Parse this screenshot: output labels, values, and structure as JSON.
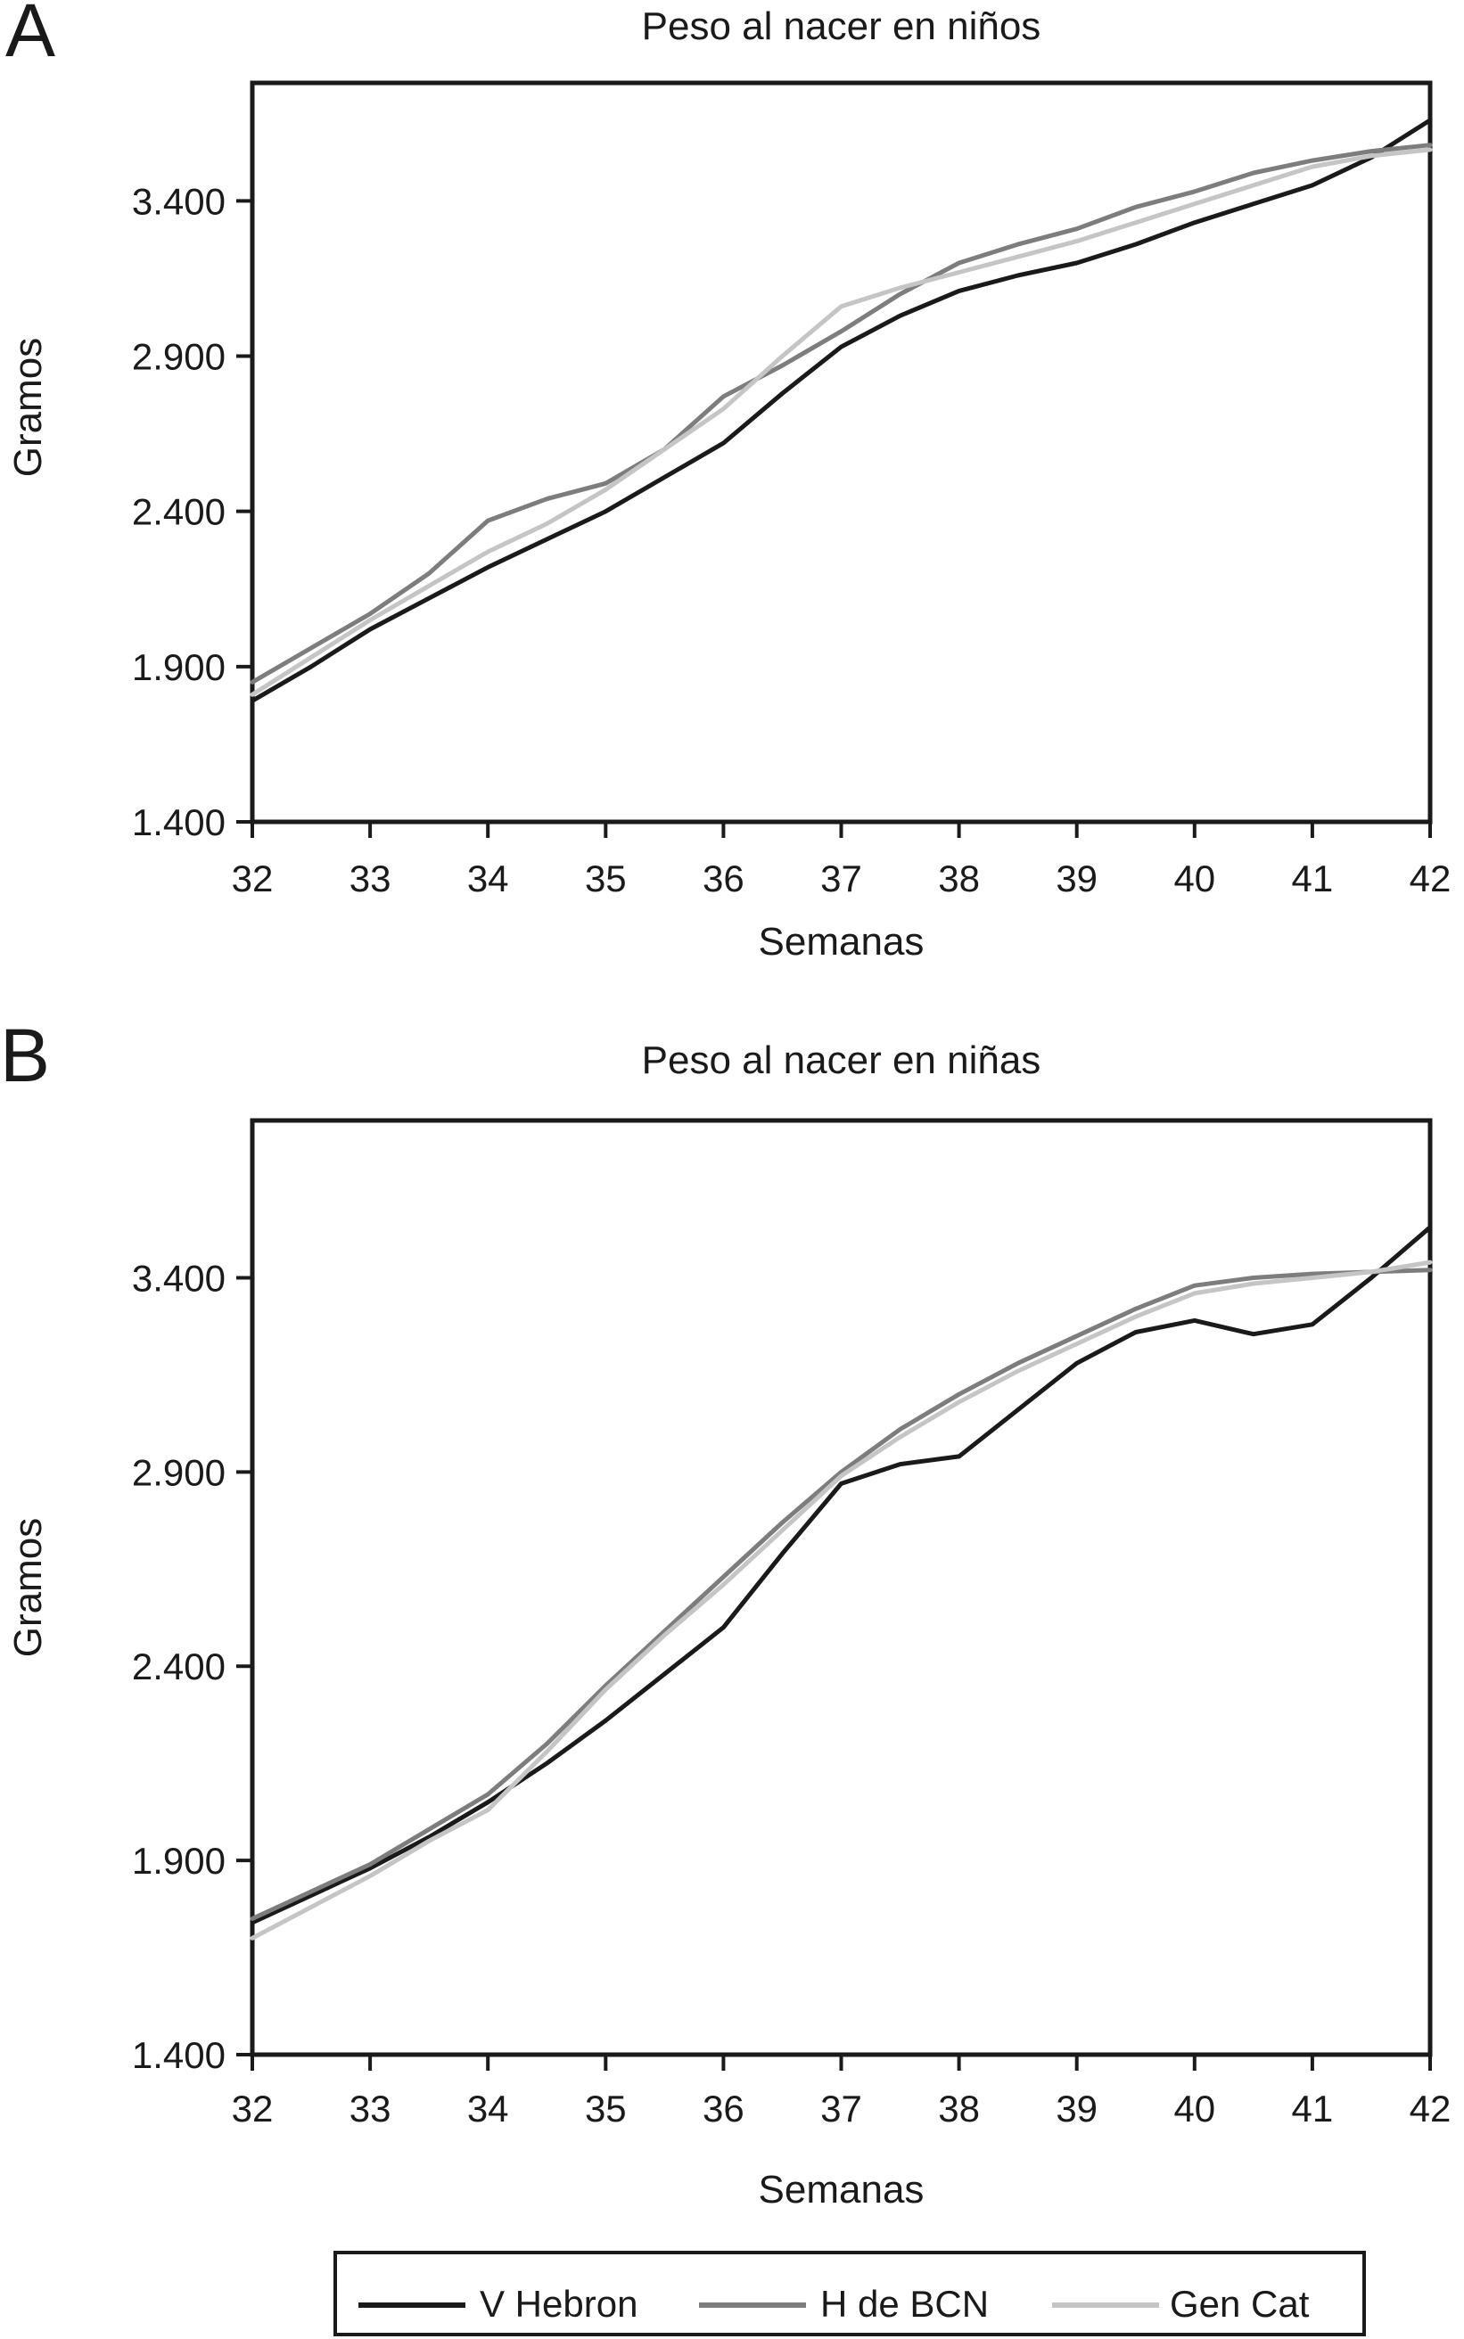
{
  "figure": {
    "background": "#ffffff",
    "text_color": "#1a1a1a"
  },
  "chart_data": [
    {
      "type": "line",
      "panel_letter": "A",
      "title": "Peso al nacer en niños",
      "xlabel": "Semanas",
      "ylabel": "Gramos",
      "xlim": [
        32,
        42
      ],
      "ylim": [
        1400,
        3780
      ],
      "grid": false,
      "legend_position": "bottom-shared",
      "x_ticks": [
        32,
        33,
        34,
        35,
        36,
        37,
        38,
        39,
        40,
        41,
        42
      ],
      "x_tick_labels": [
        "32",
        "33",
        "34",
        "35",
        "36",
        "37",
        "38",
        "39",
        "40",
        "41",
        "42"
      ],
      "y_ticks": [
        1400,
        1900,
        2400,
        2900,
        3400
      ],
      "y_tick_labels": [
        "1.400",
        "1.900",
        "2.400",
        "2.900",
        "3.400"
      ],
      "x_start": 32,
      "x_step": 0.5,
      "series": [
        {
          "name": "V Hebron",
          "color": "#1a1a1a",
          "values": [
            1790,
            1900,
            2020,
            2120,
            2220,
            2310,
            2400,
            2510,
            2620,
            2780,
            2930,
            3030,
            3110,
            3160,
            3200,
            3260,
            3330,
            3390,
            3450,
            3540,
            3660
          ]
        },
        {
          "name": "H de BCN",
          "color": "#7d7d7d",
          "values": [
            1850,
            1960,
            2070,
            2200,
            2370,
            2440,
            2490,
            2600,
            2770,
            2870,
            2980,
            3100,
            3200,
            3260,
            3310,
            3380,
            3430,
            3490,
            3530,
            3560,
            3580
          ]
        },
        {
          "name": "Gen Cat",
          "color": "#c5c5c5",
          "values": [
            1810,
            1930,
            2050,
            2160,
            2270,
            2360,
            2470,
            2600,
            2730,
            2900,
            3060,
            3120,
            3170,
            3220,
            3270,
            3330,
            3390,
            3450,
            3510,
            3545,
            3565
          ]
        }
      ]
    },
    {
      "type": "line",
      "panel_letter": "B",
      "title": "Peso al nacer en niñas",
      "xlabel": "Semanas",
      "ylabel": "Gramos",
      "xlim": [
        32,
        42
      ],
      "ylim": [
        1400,
        3805
      ],
      "grid": false,
      "legend_position": "bottom-shared",
      "x_ticks": [
        32,
        33,
        34,
        35,
        36,
        37,
        38,
        39,
        40,
        41,
        42
      ],
      "x_tick_labels": [
        "32",
        "33",
        "34",
        "35",
        "36",
        "37",
        "38",
        "39",
        "40",
        "41",
        "42"
      ],
      "y_ticks": [
        1400,
        1900,
        2400,
        2900,
        3400
      ],
      "y_tick_labels": [
        "1.400",
        "1.900",
        "2.400",
        "2.900",
        "3.400"
      ],
      "x_start": 32,
      "x_step": 0.5,
      "series": [
        {
          "name": "V Hebron",
          "color": "#1a1a1a",
          "values": [
            1740,
            1810,
            1880,
            1960,
            2050,
            2150,
            2260,
            2380,
            2500,
            2690,
            2870,
            2920,
            2940,
            3060,
            3180,
            3260,
            3290,
            3255,
            3280,
            3400,
            3530
          ]
        },
        {
          "name": "H de BCN",
          "color": "#7d7d7d",
          "values": [
            1750,
            1820,
            1890,
            1980,
            2070,
            2200,
            2350,
            2490,
            2630,
            2770,
            2900,
            3010,
            3100,
            3180,
            3250,
            3320,
            3380,
            3400,
            3410,
            3415,
            3420
          ]
        },
        {
          "name": "Gen Cat",
          "color": "#c5c5c5",
          "values": [
            1700,
            1780,
            1860,
            1950,
            2030,
            2180,
            2340,
            2480,
            2610,
            2750,
            2890,
            2990,
            3080,
            3160,
            3230,
            3300,
            3360,
            3385,
            3400,
            3415,
            3440
          ]
        }
      ]
    }
  ],
  "legend": {
    "items": [
      {
        "label": "V Hebron",
        "color": "#1a1a1a",
        "swatch": "line-swatch"
      },
      {
        "label": "H de BCN",
        "color": "#7d7d7d",
        "swatch": "line-swatch"
      },
      {
        "label": "Gen Cat",
        "color": "#c5c5c5",
        "swatch": "line-swatch"
      }
    ]
  }
}
